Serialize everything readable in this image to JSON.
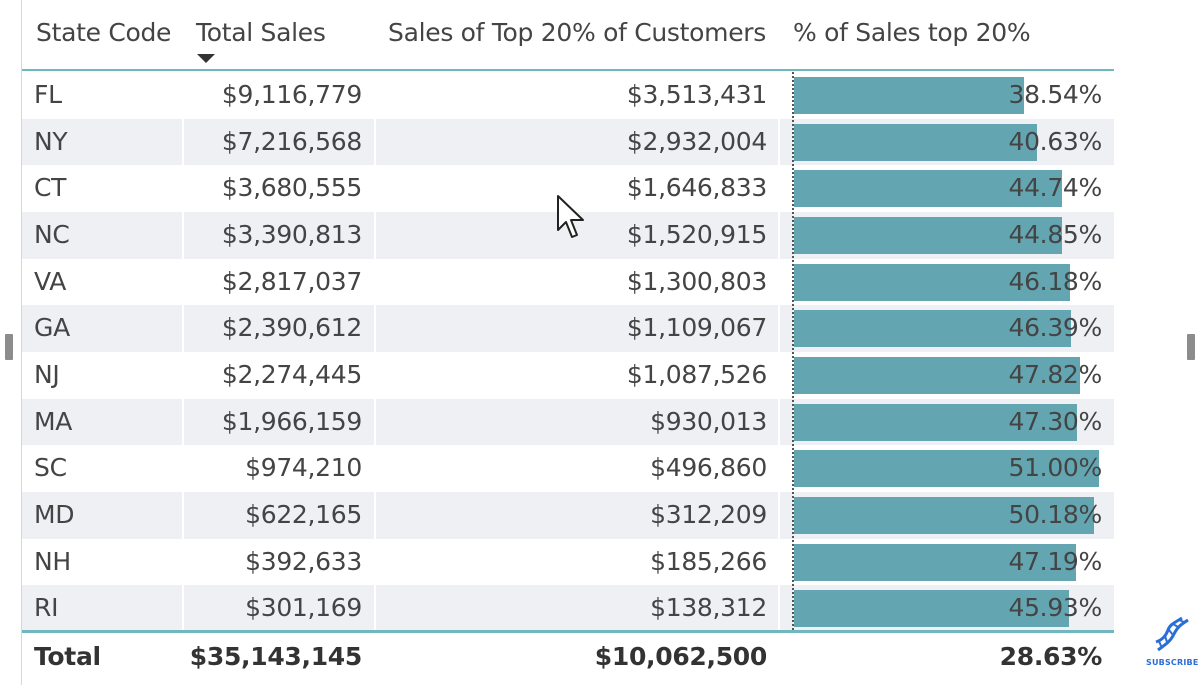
{
  "table": {
    "columns": [
      "State Code",
      "Total Sales",
      "Sales of Top 20% of Customers",
      "% of Sales top 20%"
    ],
    "sorted_column": "Total Sales",
    "sort_direction": "descending",
    "bar_color": "#63a6b2",
    "rows": [
      {
        "state": "FL",
        "total_sales": "$9,116,779",
        "top20_sales": "$3,513,431",
        "pct": "38.54%",
        "pct_value": 38.54
      },
      {
        "state": "NY",
        "total_sales": "$7,216,568",
        "top20_sales": "$2,932,004",
        "pct": "40.63%",
        "pct_value": 40.63
      },
      {
        "state": "CT",
        "total_sales": "$3,680,555",
        "top20_sales": "$1,646,833",
        "pct": "44.74%",
        "pct_value": 44.74
      },
      {
        "state": "NC",
        "total_sales": "$3,390,813",
        "top20_sales": "$1,520,915",
        "pct": "44.85%",
        "pct_value": 44.85
      },
      {
        "state": "VA",
        "total_sales": "$2,817,037",
        "top20_sales": "$1,300,803",
        "pct": "46.18%",
        "pct_value": 46.18
      },
      {
        "state": "GA",
        "total_sales": "$2,390,612",
        "top20_sales": "$1,109,067",
        "pct": "46.39%",
        "pct_value": 46.39
      },
      {
        "state": "NJ",
        "total_sales": "$2,274,445",
        "top20_sales": "$1,087,526",
        "pct": "47.82%",
        "pct_value": 47.82
      },
      {
        "state": "MA",
        "total_sales": "$1,966,159",
        "top20_sales": "$930,013",
        "pct": "47.30%",
        "pct_value": 47.3
      },
      {
        "state": "SC",
        "total_sales": "$974,210",
        "top20_sales": "$496,860",
        "pct": "51.00%",
        "pct_value": 51.0
      },
      {
        "state": "MD",
        "total_sales": "$622,165",
        "top20_sales": "$312,209",
        "pct": "50.18%",
        "pct_value": 50.18
      },
      {
        "state": "NH",
        "total_sales": "$392,633",
        "top20_sales": "$185,266",
        "pct": "47.19%",
        "pct_value": 47.19
      },
      {
        "state": "RI",
        "total_sales": "$301,169",
        "top20_sales": "$138,312",
        "pct": "45.93%",
        "pct_value": 45.93
      }
    ],
    "total": {
      "label": "Total",
      "total_sales": "$35,143,145",
      "top20_sales": "$10,062,500",
      "pct": "28.63%"
    }
  },
  "overlay": {
    "cursor_icon": "mouse-pointer-icon",
    "subscribe_icon": "dna-icon",
    "subscribe_label": "SUBSCRIBE"
  }
}
